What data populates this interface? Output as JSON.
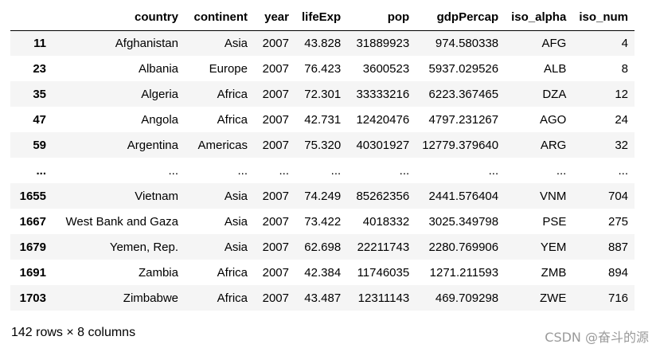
{
  "table": {
    "columns": [
      "country",
      "continent",
      "year",
      "lifeExp",
      "pop",
      "gdpPercap",
      "iso_alpha",
      "iso_num"
    ],
    "rows": [
      {
        "index": "11",
        "cells": [
          "Afghanistan",
          "Asia",
          "2007",
          "43.828",
          "31889923",
          "974.580338",
          "AFG",
          "4"
        ]
      },
      {
        "index": "23",
        "cells": [
          "Albania",
          "Europe",
          "2007",
          "76.423",
          "3600523",
          "5937.029526",
          "ALB",
          "8"
        ]
      },
      {
        "index": "35",
        "cells": [
          "Algeria",
          "Africa",
          "2007",
          "72.301",
          "33333216",
          "6223.367465",
          "DZA",
          "12"
        ]
      },
      {
        "index": "47",
        "cells": [
          "Angola",
          "Africa",
          "2007",
          "42.731",
          "12420476",
          "4797.231267",
          "AGO",
          "24"
        ]
      },
      {
        "index": "59",
        "cells": [
          "Argentina",
          "Americas",
          "2007",
          "75.320",
          "40301927",
          "12779.379640",
          "ARG",
          "32"
        ]
      },
      {
        "index": "...",
        "cells": [
          "...",
          "...",
          "...",
          "...",
          "...",
          "...",
          "...",
          "..."
        ]
      },
      {
        "index": "1655",
        "cells": [
          "Vietnam",
          "Asia",
          "2007",
          "74.249",
          "85262356",
          "2441.576404",
          "VNM",
          "704"
        ]
      },
      {
        "index": "1667",
        "cells": [
          "West Bank and Gaza",
          "Asia",
          "2007",
          "73.422",
          "4018332",
          "3025.349798",
          "PSE",
          "275"
        ]
      },
      {
        "index": "1679",
        "cells": [
          "Yemen, Rep.",
          "Asia",
          "2007",
          "62.698",
          "22211743",
          "2280.769906",
          "YEM",
          "887"
        ]
      },
      {
        "index": "1691",
        "cells": [
          "Zambia",
          "Africa",
          "2007",
          "42.384",
          "11746035",
          "1271.211593",
          "ZMB",
          "894"
        ]
      },
      {
        "index": "1703",
        "cells": [
          "Zimbabwe",
          "Africa",
          "2007",
          "43.487",
          "12311143",
          "469.709298",
          "ZWE",
          "716"
        ]
      }
    ]
  },
  "shape_info": "142 rows × 8 columns",
  "watermark": "CSDN @奋斗的源"
}
